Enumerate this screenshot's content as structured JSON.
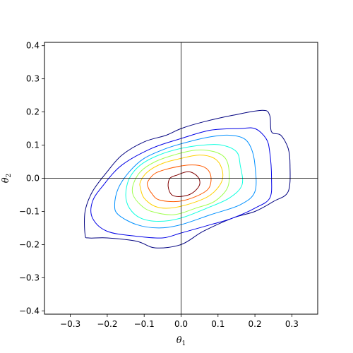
{
  "chart_data": {
    "type": "contour",
    "title": "",
    "xlabel": "θ",
    "xlabel_sub": "1",
    "ylabel": "θ",
    "ylabel_sub": "2",
    "xlim": [
      -0.37,
      0.37
    ],
    "ylim": [
      -0.41,
      0.41
    ],
    "xticks": [
      -0.3,
      -0.2,
      -0.1,
      0.0,
      0.1,
      0.2,
      0.3
    ],
    "xtick_labels": [
      "−0.3",
      "−0.2",
      "−0.1",
      "0.0",
      "0.1",
      "0.2",
      "0.3"
    ],
    "yticks": [
      -0.4,
      -0.3,
      -0.2,
      -0.1,
      0.0,
      0.1,
      0.2,
      0.3,
      0.4
    ],
    "ytick_labels": [
      "−0.4",
      "−0.3",
      "−0.2",
      "−0.1",
      "0.0",
      "0.1",
      "0.2",
      "0.3",
      "0.4"
    ],
    "reference_lines": {
      "x": 0.0,
      "y": 0.0
    },
    "grid": false,
    "colormap": "jet",
    "contours": [
      {
        "level": 1,
        "color": "#00007f",
        "points": [
          [
            -0.26,
            -0.17
          ],
          [
            -0.26,
            -0.1
          ],
          [
            -0.24,
            -0.04
          ],
          [
            -0.2,
            0.02
          ],
          [
            -0.16,
            0.07
          ],
          [
            -0.1,
            0.11
          ],
          [
            -0.04,
            0.13
          ],
          [
            0.0,
            0.15
          ],
          [
            0.06,
            0.17
          ],
          [
            0.14,
            0.19
          ],
          [
            0.22,
            0.205
          ],
          [
            0.24,
            0.19
          ],
          [
            0.245,
            0.14
          ],
          [
            0.27,
            0.13
          ],
          [
            0.29,
            0.09
          ],
          [
            0.295,
            0.04
          ],
          [
            0.29,
            -0.04
          ],
          [
            0.25,
            -0.07
          ],
          [
            0.2,
            -0.1
          ],
          [
            0.14,
            -0.12
          ],
          [
            0.06,
            -0.16
          ],
          [
            0.0,
            -0.2
          ],
          [
            -0.07,
            -0.21
          ],
          [
            -0.12,
            -0.19
          ],
          [
            -0.2,
            -0.18
          ],
          [
            -0.25,
            -0.18
          ]
        ]
      },
      {
        "level": 2,
        "color": "#0000e6",
        "points": [
          [
            -0.24,
            -0.12
          ],
          [
            -0.24,
            -0.07
          ],
          [
            -0.21,
            -0.02
          ],
          [
            -0.16,
            0.04
          ],
          [
            -0.08,
            0.09
          ],
          [
            0.0,
            0.12
          ],
          [
            0.08,
            0.145
          ],
          [
            0.16,
            0.15
          ],
          [
            0.2,
            0.15
          ],
          [
            0.23,
            0.12
          ],
          [
            0.24,
            0.08
          ],
          [
            0.245,
            0.0
          ],
          [
            0.24,
            -0.06
          ],
          [
            0.2,
            -0.09
          ],
          [
            0.14,
            -0.12
          ],
          [
            0.08,
            -0.14
          ],
          [
            0.0,
            -0.165
          ],
          [
            -0.05,
            -0.18
          ],
          [
            -0.12,
            -0.175
          ],
          [
            -0.2,
            -0.16
          ]
        ]
      },
      {
        "level": 3,
        "color": "#0090ff",
        "points": [
          [
            -0.18,
            -0.08
          ],
          [
            -0.17,
            -0.03
          ],
          [
            -0.14,
            0.02
          ],
          [
            -0.1,
            0.06
          ],
          [
            -0.04,
            0.09
          ],
          [
            0.02,
            0.11
          ],
          [
            0.08,
            0.125
          ],
          [
            0.13,
            0.13
          ],
          [
            0.17,
            0.12
          ],
          [
            0.19,
            0.09
          ],
          [
            0.2,
            0.04
          ],
          [
            0.2,
            -0.04
          ],
          [
            0.16,
            -0.08
          ],
          [
            0.08,
            -0.11
          ],
          [
            0.0,
            -0.14
          ],
          [
            -0.06,
            -0.15
          ],
          [
            -0.12,
            -0.14
          ],
          [
            -0.17,
            -0.11
          ]
        ]
      },
      {
        "level": 4,
        "color": "#10ffe0",
        "points": [
          [
            -0.15,
            -0.05
          ],
          [
            -0.14,
            0.0
          ],
          [
            -0.11,
            0.04
          ],
          [
            -0.06,
            0.07
          ],
          [
            0.0,
            0.09
          ],
          [
            0.06,
            0.1
          ],
          [
            0.11,
            0.1
          ],
          [
            0.15,
            0.08
          ],
          [
            0.16,
            0.04
          ],
          [
            0.165,
            -0.02
          ],
          [
            0.13,
            -0.06
          ],
          [
            0.07,
            -0.09
          ],
          [
            0.0,
            -0.12
          ],
          [
            -0.06,
            -0.13
          ],
          [
            -0.11,
            -0.12
          ],
          [
            -0.14,
            -0.09
          ]
        ]
      },
      {
        "level": 5,
        "color": "#a0ff50",
        "points": [
          [
            -0.13,
            -0.02
          ],
          [
            -0.11,
            0.02
          ],
          [
            -0.07,
            0.05
          ],
          [
            -0.02,
            0.07
          ],
          [
            0.04,
            0.085
          ],
          [
            0.09,
            0.08
          ],
          [
            0.12,
            0.06
          ],
          [
            0.13,
            0.02
          ],
          [
            0.125,
            -0.03
          ],
          [
            0.09,
            -0.07
          ],
          [
            0.04,
            -0.09
          ],
          [
            -0.02,
            -0.11
          ],
          [
            -0.08,
            -0.1
          ],
          [
            -0.11,
            -0.08
          ],
          [
            -0.13,
            -0.05
          ]
        ]
      },
      {
        "level": 6,
        "color": "#ffd000",
        "points": [
          [
            -0.11,
            -0.01
          ],
          [
            -0.09,
            0.02
          ],
          [
            -0.05,
            0.045
          ],
          [
            0.0,
            0.06
          ],
          [
            0.05,
            0.07
          ],
          [
            0.09,
            0.06
          ],
          [
            0.11,
            0.03
          ],
          [
            0.11,
            -0.01
          ],
          [
            0.08,
            -0.05
          ],
          [
            0.03,
            -0.075
          ],
          [
            -0.03,
            -0.09
          ],
          [
            -0.07,
            -0.085
          ],
          [
            -0.1,
            -0.06
          ],
          [
            -0.11,
            -0.03
          ]
        ]
      },
      {
        "level": 7,
        "color": "#ff5a00",
        "points": [
          [
            -0.09,
            -0.01
          ],
          [
            -0.07,
            0.015
          ],
          [
            -0.03,
            0.03
          ],
          [
            0.02,
            0.04
          ],
          [
            0.06,
            0.035
          ],
          [
            0.08,
            0.01
          ],
          [
            0.075,
            -0.03
          ],
          [
            0.04,
            -0.055
          ],
          [
            -0.01,
            -0.07
          ],
          [
            -0.06,
            -0.065
          ],
          [
            -0.08,
            -0.045
          ],
          [
            -0.09,
            -0.025
          ]
        ]
      },
      {
        "level": 8,
        "color": "#7f0000",
        "points": [
          [
            -0.035,
            -0.025
          ],
          [
            -0.03,
            0.0
          ],
          [
            -0.01,
            0.01
          ],
          [
            0.02,
            0.02
          ],
          [
            0.045,
            0.005
          ],
          [
            0.05,
            -0.02
          ],
          [
            0.03,
            -0.045
          ],
          [
            0.0,
            -0.055
          ],
          [
            -0.025,
            -0.05
          ]
        ]
      }
    ]
  }
}
